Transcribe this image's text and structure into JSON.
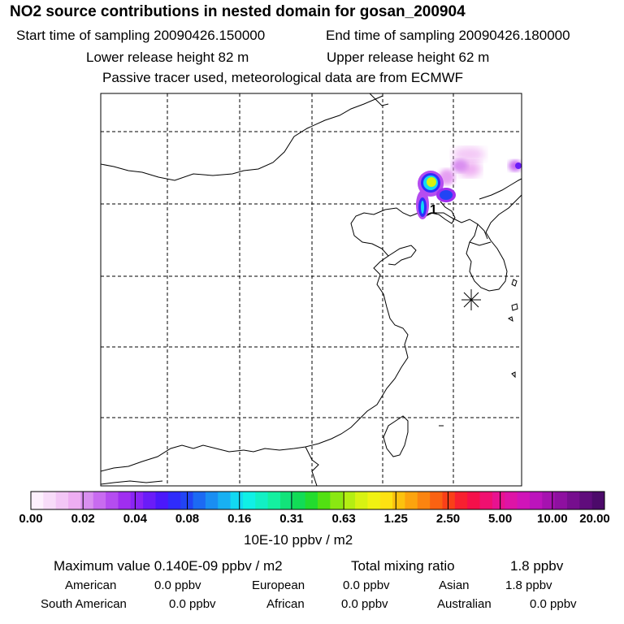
{
  "header": {
    "title": "NO2 source contributions in nested domain for gosan_200904",
    "start_time": "Start time of sampling 20090426.150000",
    "end_time": "End time of sampling 20090426.180000",
    "lower_release": "Lower release height   82 m",
    "upper_release": "Upper release height   62 m",
    "tracer_note": "Passive tracer used, meteorological data are from ECMWF"
  },
  "map": {
    "source_marker_label": "1"
  },
  "colorbar": {
    "tick_labels": [
      "0.00",
      "0.02",
      "0.04",
      "0.08",
      "0.16",
      "0.31",
      "0.63",
      "1.25",
      "2.50",
      "5.00",
      "10.00",
      "20.00"
    ],
    "unit": "10E-10 ppbv / m2",
    "colors": [
      "#fdf0fd",
      "#f8dcf9",
      "#f3c6f6",
      "#eeaef2",
      "#d98ff0",
      "#c86bf0",
      "#b54cf0",
      "#a02ef0",
      "#8a24f5",
      "#6a1cf8",
      "#4b18fb",
      "#2f2cfb",
      "#2244f5",
      "#1c6af3",
      "#1a8ef2",
      "#18b0f2",
      "#12d8f2",
      "#10f0e6",
      "#12f0c4",
      "#14f0a0",
      "#12e47a",
      "#12dc56",
      "#22dc2e",
      "#52e012",
      "#8ae812",
      "#b4ee12",
      "#d8f212",
      "#f0f212",
      "#fde212",
      "#fcc20e",
      "#fca40e",
      "#fb8410",
      "#fa6212",
      "#fa4018",
      "#f82030",
      "#f5104a",
      "#f01070",
      "#e81290",
      "#de14a6",
      "#d014b8",
      "#bc14bc",
      "#a612b0",
      "#8e10a0",
      "#760e8e",
      "#600c7c",
      "#4c0a6a"
    ]
  },
  "stats": {
    "max_value": "Maximum value  0.140E-09 ppbv / m2",
    "total_mixing": "Total mixing ratio",
    "total_value": "1.8 ppbv"
  },
  "regions": [
    {
      "name": "American",
      "value": "0.0 ppbv"
    },
    {
      "name": "European",
      "value": "0.0 ppbv"
    },
    {
      "name": "Asian",
      "value": "1.8 ppbv"
    },
    {
      "name": "South American",
      "value": "0.0 ppbv"
    },
    {
      "name": "African",
      "value": "0.0 ppbv"
    },
    {
      "name": "Australian",
      "value": "0.0 ppbv"
    }
  ]
}
